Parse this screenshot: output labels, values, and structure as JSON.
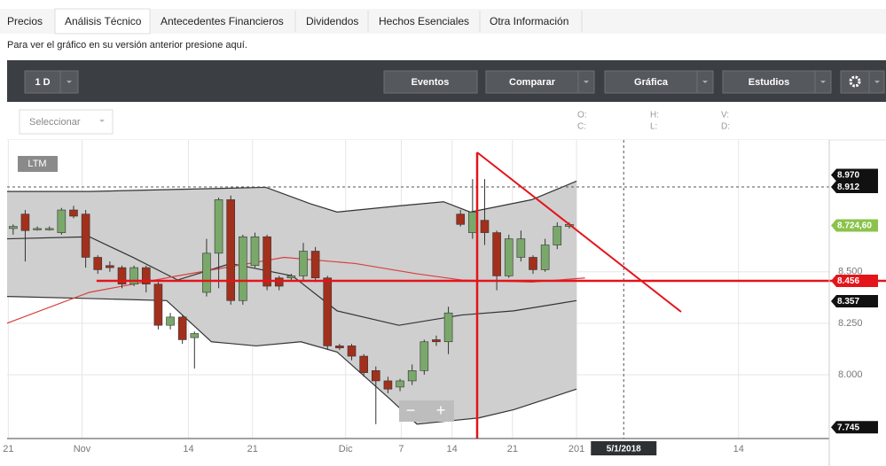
{
  "tabs": [
    "Precios",
    "Análisis Técnico",
    "Antecedentes Financieros",
    "Dividendos",
    "Hechos Esenciales",
    "Otra Información"
  ],
  "notice": "Para ver el gráfico en su versión anterior presione aquí.",
  "toolbar": {
    "interval": "1 D",
    "buttons": [
      "Eventos",
      "Comparar",
      "Gráfica",
      "Estudios"
    ]
  },
  "selector": "Seleccionar",
  "ohlc_labels": [
    "O:",
    "H:",
    "V:",
    "C:",
    "L:",
    "D:"
  ],
  "range": "LTM",
  "zoom_controls": [
    "−",
    "+"
  ],
  "chart_data": {
    "type": "candlestick",
    "up_color": "#7aa86a",
    "down_color": "#a2301c",
    "band_fill": "#cfcfcf",
    "xlim": [
      -0.5,
      67.5
    ],
    "ylim": [
      7.69,
      9.14
    ],
    "xticks": [
      {
        "value": -0.4,
        "label": "21"
      },
      {
        "value": 5.7,
        "label": "Nov"
      },
      {
        "value": 14.5,
        "label": "14"
      },
      {
        "value": 19.8,
        "label": "21"
      },
      {
        "value": 27.5,
        "label": "Dic"
      },
      {
        "value": 32.1,
        "label": "7"
      },
      {
        "value": 36.3,
        "label": "14"
      },
      {
        "value": 41.3,
        "label": "21"
      },
      {
        "value": 46.6,
        "label": "201"
      },
      {
        "value": 60,
        "label": "14"
      }
    ],
    "yticks": [
      {
        "value": 8,
        "label": "8.000"
      },
      {
        "value": 8.25,
        "label": "8.250"
      },
      {
        "value": 8.5,
        "label": "8.500"
      }
    ],
    "x": [
      0,
      1,
      2,
      3,
      4,
      5,
      6,
      7,
      8,
      9,
      10,
      11,
      12,
      13,
      14,
      15,
      16,
      17,
      18,
      19,
      20,
      21,
      22,
      23,
      24,
      25,
      26,
      27,
      28,
      29,
      30,
      31,
      32,
      33,
      34,
      35,
      36,
      37,
      38,
      39,
      40,
      41,
      42,
      43,
      44,
      45,
      46
    ],
    "open": [
      8.71,
      8.78,
      8.71,
      8.71,
      8.69,
      8.8,
      8.78,
      8.57,
      8.53,
      8.52,
      8.44,
      8.52,
      8.44,
      8.24,
      8.28,
      8.18,
      8.4,
      8.59,
      8.85,
      8.36,
      8.53,
      8.67,
      8.47,
      8.47,
      8.48,
      8.6,
      8.47,
      8.14,
      8.14,
      8.09,
      8.02,
      7.97,
      7.94,
      7.97,
      8.02,
      8.17,
      8.16,
      8.78,
      8.69,
      8.75,
      8.69,
      8.48,
      8.57,
      8.57,
      8.51,
      8.63,
      8.72
    ],
    "high": [
      8.73,
      8.8,
      8.72,
      8.72,
      8.81,
      8.82,
      8.8,
      8.58,
      8.55,
      8.53,
      8.53,
      8.53,
      8.45,
      8.3,
      8.29,
      8.21,
      8.66,
      8.86,
      8.87,
      8.68,
      8.69,
      8.68,
      8.48,
      8.49,
      8.64,
      8.62,
      8.48,
      8.15,
      8.15,
      8.1,
      8.04,
      7.99,
      7.98,
      8.05,
      8.17,
      8.19,
      8.33,
      8.8,
      8.95,
      8.95,
      8.7,
      8.68,
      8.7,
      8.58,
      8.66,
      8.74,
      8.74
    ],
    "low": [
      8.68,
      8.55,
      8.7,
      8.7,
      8.68,
      8.76,
      8.52,
      8.49,
      8.5,
      8.42,
      8.43,
      8.4,
      8.22,
      8.22,
      8.15,
      8.03,
      8.38,
      8.42,
      8.34,
      8.34,
      8.52,
      8.41,
      8.41,
      8.46,
      8.46,
      8.45,
      8.12,
      8.12,
      8.07,
      7.99,
      7.76,
      7.91,
      7.92,
      7.95,
      8.0,
      8.14,
      8.1,
      8.72,
      8.66,
      8.63,
      8.41,
      8.47,
      8.55,
      8.49,
      8.5,
      8.61,
      8.71
    ],
    "close": [
      8.72,
      8.7,
      8.71,
      8.71,
      8.8,
      8.77,
      8.57,
      8.51,
      8.52,
      8.44,
      8.52,
      8.44,
      8.24,
      8.28,
      8.17,
      8.2,
      8.59,
      8.85,
      8.36,
      8.67,
      8.67,
      8.43,
      8.43,
      8.48,
      8.6,
      8.47,
      8.14,
      8.13,
      8.09,
      8.01,
      7.97,
      7.93,
      7.97,
      8.02,
      8.16,
      8.16,
      8.3,
      8.73,
      8.79,
      8.69,
      8.48,
      8.66,
      8.66,
      8.51,
      8.63,
      8.72,
      8.73
    ],
    "bands": {
      "upper": {
        "color": "#333333",
        "x": [
          -0.5,
          6.3,
          13.6,
          20.9,
          24.6,
          26.8,
          31.9,
          35.6,
          37.8,
          42.9,
          46.6
        ],
        "values": [
          8.89,
          8.89,
          8.9,
          8.91,
          8.83,
          8.79,
          8.82,
          8.84,
          8.79,
          8.85,
          8.94
        ]
      },
      "lower": {
        "color": "#333333",
        "x": [
          -0.5,
          6.3,
          12.7,
          16.4,
          20.1,
          23.8,
          26.8,
          31.2,
          33.4,
          38.5,
          41.4,
          46.6
        ],
        "values": [
          8.38,
          8.37,
          8.36,
          8.16,
          8.14,
          8.16,
          8.11,
          7.88,
          7.76,
          7.79,
          7.83,
          7.93
        ]
      }
    },
    "overlays": [
      {
        "color": "#333333",
        "x": [
          -0.5,
          6.3,
          9.9,
          13.6,
          18.0,
          23.1,
          26.8,
          31.9,
          37.1,
          41.4,
          46.6
        ],
        "values": [
          8.66,
          8.67,
          8.57,
          8.46,
          8.54,
          8.48,
          8.31,
          8.24,
          8.29,
          8.31,
          8.36
        ]
      },
      {
        "color": "#d94040",
        "x": [
          -0.5,
          6.3,
          13.6,
          19.5,
          22.4,
          28.3,
          33.4,
          37.1,
          42.9,
          47.3
        ],
        "values": [
          8.25,
          8.4,
          8.48,
          8.54,
          8.57,
          8.54,
          8.49,
          8.46,
          8.45,
          8.47
        ]
      }
    ],
    "cursor": {
      "x": {
        "value": 50.5,
        "label": "5/1/2018"
      },
      "y": {
        "value": 8.912,
        "label": "8.912"
      }
    },
    "horizontal_line": {
      "value": 8.456,
      "label": "8.456",
      "color": "#e4141b",
      "from_x": 6.9
    },
    "price_labels": [
      {
        "value": 8.97,
        "label": "8.970",
        "color": "#111111"
      },
      {
        "value": 8.7246,
        "label": "8.724,60",
        "color": "#8bc34a"
      },
      {
        "value": 8.357,
        "label": "8.357",
        "color": "#111111"
      },
      {
        "value": 7.745,
        "label": "7.745",
        "color": "#111111"
      }
    ]
  }
}
